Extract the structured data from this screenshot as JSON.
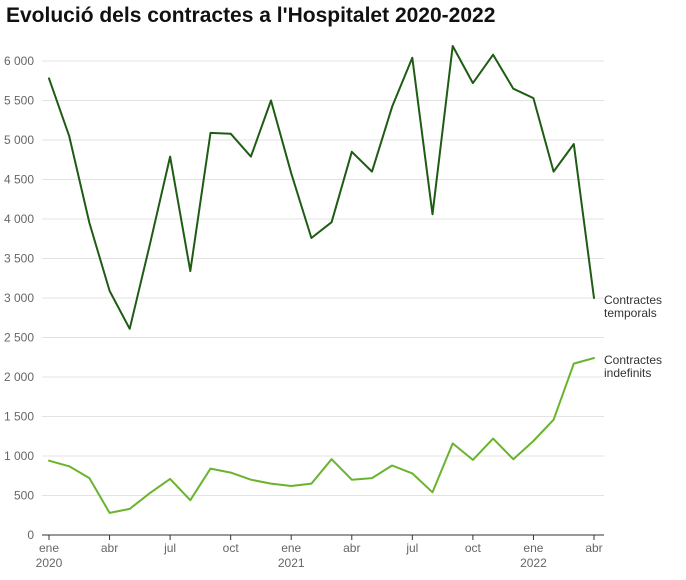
{
  "chart_data": {
    "type": "line",
    "title": "Evolució dels contractes a l'Hospitalet 2020-2022",
    "xlabel": "",
    "ylabel": "",
    "ylim": [
      0,
      6000
    ],
    "y_ticks": [
      0,
      500,
      1000,
      1500,
      2000,
      2500,
      3000,
      3500,
      4000,
      4500,
      5000,
      5500,
      6000
    ],
    "y_tick_labels": [
      "0",
      "500",
      "1 000",
      "1 500",
      "2 000",
      "2 500",
      "3 000",
      "3 500",
      "4 000",
      "4 500",
      "5 000",
      "5 500",
      "6 000"
    ],
    "x_ticks": [
      {
        "month": "2020-01",
        "label": "ene",
        "year": "2020"
      },
      {
        "month": "2020-04",
        "label": "abr",
        "year": ""
      },
      {
        "month": "2020-07",
        "label": "jul",
        "year": ""
      },
      {
        "month": "2020-10",
        "label": "oct",
        "year": ""
      },
      {
        "month": "2021-01",
        "label": "ene",
        "year": "2021"
      },
      {
        "month": "2021-04",
        "label": "abr",
        "year": ""
      },
      {
        "month": "2021-07",
        "label": "jul",
        "year": ""
      },
      {
        "month": "2021-10",
        "label": "oct",
        "year": ""
      },
      {
        "month": "2022-01",
        "label": "ene",
        "year": "2022"
      },
      {
        "month": "2022-04",
        "label": "abr",
        "year": ""
      }
    ],
    "x": [
      "2020-01",
      "2020-02",
      "2020-03",
      "2020-04",
      "2020-05",
      "2020-06",
      "2020-07",
      "2020-08",
      "2020-09",
      "2020-10",
      "2020-11",
      "2020-12",
      "2021-01",
      "2021-02",
      "2021-03",
      "2021-04",
      "2021-05",
      "2021-06",
      "2021-07",
      "2021-08",
      "2021-09",
      "2021-10",
      "2021-11",
      "2021-12",
      "2022-01",
      "2022-02",
      "2022-03",
      "2022-04"
    ],
    "grid": true,
    "series": [
      {
        "name": "Contractes temporals",
        "label_lines": [
          "Contractes",
          "temporals"
        ],
        "color": "#1e5c14",
        "values": [
          5780,
          5050,
          3950,
          3090,
          2610,
          3680,
          4790,
          3340,
          5090,
          5080,
          4790,
          5500,
          4580,
          3760,
          3960,
          4850,
          4600,
          5420,
          6040,
          4060,
          6190,
          5720,
          6080,
          5650,
          5530,
          4600,
          4950,
          3000
        ]
      },
      {
        "name": "Contractes indefinits",
        "label_lines": [
          "Contractes",
          "indefinits"
        ],
        "color": "#6ab42d",
        "values": [
          940,
          870,
          720,
          280,
          330,
          530,
          710,
          440,
          840,
          790,
          700,
          650,
          620,
          650,
          960,
          700,
          720,
          880,
          780,
          540,
          1160,
          950,
          1220,
          960,
          1190,
          1460,
          2170,
          2240
        ]
      }
    ]
  }
}
